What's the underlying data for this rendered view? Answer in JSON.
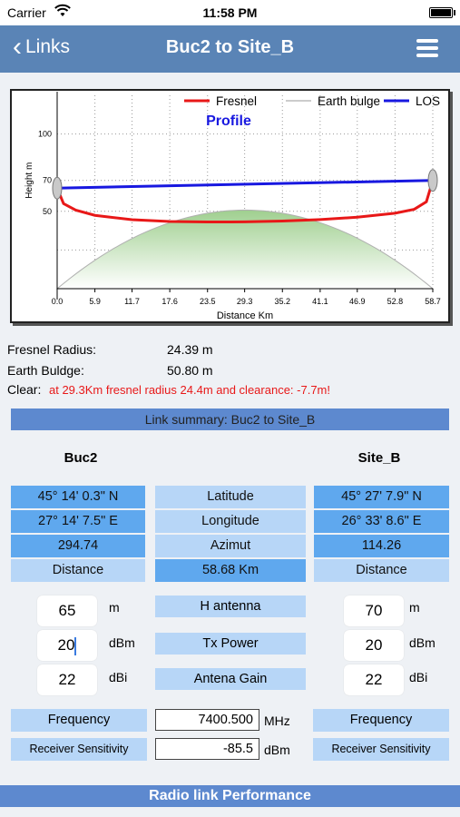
{
  "status": {
    "carrier": "Carrier",
    "time": "11:58 PM"
  },
  "nav": {
    "back_label": "Links",
    "title": "Buc2 to Site_B",
    "menu_icon": "hamburger-icon"
  },
  "chart_data": {
    "type": "line",
    "title": "Profile",
    "legend": [
      "Fresnel",
      "Earth bulge",
      "LOS"
    ],
    "colors": {
      "Fresnel": "#e81818",
      "Earth bulge": "#9a9a9a",
      "LOS": "#1818e0"
    },
    "xlabel": "Distance Km",
    "ylabel": "Height m",
    "x_ticks": [
      "0.0",
      "5.9",
      "11.7",
      "17.6",
      "23.5",
      "29.3",
      "35.2",
      "41.1",
      "46.9",
      "52.8",
      "58.7"
    ],
    "y_ticks": [
      "50",
      "70",
      "100"
    ],
    "xlim": [
      0,
      58.7
    ],
    "ylim": [
      0,
      125
    ],
    "series": [
      {
        "name": "LOS",
        "x": [
          0,
          58.7
        ],
        "y": [
          65,
          70
        ]
      },
      {
        "name": "Fresnel",
        "x": [
          0,
          1,
          2.9,
          5.9,
          11.7,
          17.6,
          23.5,
          29.3,
          35.2,
          41.1,
          46.9,
          52.8,
          55.8,
          57.7,
          58.7
        ],
        "y": [
          65,
          55,
          50.8,
          47.4,
          44.6,
          43.4,
          43.1,
          43.2,
          43.7,
          44.7,
          46.2,
          48.8,
          51.3,
          56.2,
          70
        ]
      },
      {
        "name": "Earth bulge",
        "x": [
          0,
          5.9,
          11.7,
          17.6,
          23.5,
          29.3,
          35.2,
          41.1,
          46.9,
          52.8,
          58.7
        ],
        "y": [
          0,
          18.3,
          32.5,
          42.7,
          48.7,
          50.8,
          48.7,
          42.7,
          32.5,
          18.3,
          0
        ]
      }
    ]
  },
  "info": {
    "fresnel_label": "Fresnel Radius:",
    "fresnel_value": "24.39 m",
    "bulge_label": "Earth Buldge:",
    "bulge_value": "50.80 m",
    "clear_label": "Clear:",
    "clear_value": "at 29.3Km  fresnel radius 24.4m and clearance: -7.7m!"
  },
  "summary_title": "Link summary: Buc2 to Site_B",
  "site_a": {
    "name": "Buc2",
    "lat": "45° 14' 0.3\" N",
    "lon": "27° 14' 7.5\" E",
    "azimut": "294.74",
    "distance_label": "Distance",
    "h_antenna": "65",
    "tx_power": "20",
    "gain": "22"
  },
  "site_b": {
    "name": "Site_B",
    "lat": "45° 27' 7.9\" N",
    "lon": "26° 33' 8.6\" E",
    "azimut": "114.26",
    "distance_label": "Distance",
    "h_antenna": "70",
    "tx_power": "20",
    "gain": "22"
  },
  "middle": {
    "latitude": "Latitude",
    "longitude": "Longitude",
    "azimut": "Azimut",
    "distance": "58.68 Km",
    "h_antenna": "H antenna",
    "tx_power": "Tx Power",
    "gain": "Antena Gain"
  },
  "units": {
    "m": "m",
    "dbm": "dBm",
    "dbi": "dBi",
    "mhz": "MHz"
  },
  "frequency": {
    "label": "Frequency",
    "value": "7400.500"
  },
  "sensitivity": {
    "label": "Receiver Sensitivity",
    "value": "-85.5"
  },
  "performance_title": "Radio link Performance"
}
